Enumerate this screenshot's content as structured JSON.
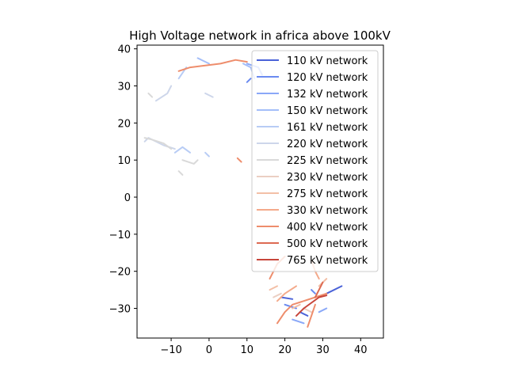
{
  "chart_data": {
    "type": "line",
    "title": "High Voltage network in africa above 100kV",
    "xlabel": "",
    "ylabel": "",
    "xlim": [
      -19,
      46
    ],
    "ylim": [
      -38,
      41
    ],
    "xticks": [
      -10,
      0,
      10,
      20,
      30,
      40
    ],
    "yticks": [
      -30,
      -20,
      -10,
      0,
      10,
      20,
      30,
      40
    ],
    "xtick_labels": [
      "−10",
      "0",
      "10",
      "20",
      "30",
      "40"
    ],
    "ytick_labels": [
      "−30",
      "−20",
      "−10",
      "0",
      "10",
      "20",
      "30",
      "40"
    ],
    "grid": false,
    "legend_position": "top-right",
    "series": [
      {
        "name": "110 kV network",
        "color": "#4a62d8",
        "segments": [
          [
            [
              19,
              -27
            ],
            [
              22,
              -27.5
            ]
          ],
          [
            [
              31,
              -26
            ],
            [
              35,
              -24
            ]
          ],
          [
            [
              24,
              -31
            ],
            [
              26,
              -32
            ]
          ]
        ]
      },
      {
        "name": "120 kV network",
        "color": "#6a8af0",
        "segments": [
          [
            [
              10,
              31
            ],
            [
              11,
              32
            ]
          ],
          [
            [
              20,
              -29
            ],
            [
              23,
              -30
            ]
          ],
          [
            [
              27,
              -25
            ],
            [
              28,
              -26
            ]
          ]
        ]
      },
      {
        "name": "132 kV network",
        "color": "#8aa8f8",
        "segments": [
          [
            [
              10,
              36
            ],
            [
              13,
              35
            ],
            [
              14,
              33
            ]
          ],
          [
            [
              22,
              -33
            ],
            [
              25,
              -34
            ]
          ],
          [
            [
              29,
              -31
            ],
            [
              31,
              -30
            ]
          ]
        ]
      },
      {
        "name": "150 kV network",
        "color": "#a4bef9",
        "segments": [
          [
            [
              9,
              36
            ],
            [
              11,
              35
            ],
            [
              12,
              32
            ]
          ],
          [
            [
              -3,
              37.5
            ],
            [
              0,
              36
            ]
          ]
        ]
      },
      {
        "name": "161 kV network",
        "color": "#b8ccf5",
        "segments": [
          [
            [
              -9,
              12
            ],
            [
              -7,
              13.5
            ],
            [
              -5,
              12
            ]
          ],
          [
            [
              -1,
              12
            ],
            [
              0,
              11
            ]
          ],
          [
            [
              -8,
              32
            ],
            [
              -6,
              35
            ]
          ]
        ]
      },
      {
        "name": "220 kV network",
        "color": "#cdd6ea",
        "segments": [
          [
            [
              -17,
              15
            ],
            [
              -16,
              16
            ],
            [
              -12,
              14
            ],
            [
              -9,
              13
            ]
          ],
          [
            [
              -1,
              28
            ],
            [
              1,
              27
            ]
          ],
          [
            [
              -14,
              26
            ],
            [
              -11,
              28
            ],
            [
              -10,
              30
            ]
          ]
        ]
      },
      {
        "name": "225 kV network",
        "color": "#d9d9d9",
        "segments": [
          [
            [
              -17,
              16
            ],
            [
              -15,
              15.5
            ],
            [
              -12,
              14.5
            ],
            [
              -10,
              13
            ]
          ],
          [
            [
              -7,
              10
            ],
            [
              -4,
              9
            ],
            [
              -3,
              10
            ]
          ],
          [
            [
              -8,
              7
            ],
            [
              -7,
              6
            ]
          ],
          [
            [
              -16,
              28
            ],
            [
              -15,
              27
            ]
          ]
        ]
      },
      {
        "name": "230 kV network",
        "color": "#ebcfc3",
        "segments": [
          [
            [
              17,
              -27
            ],
            [
              19,
              -26
            ]
          ],
          [
            [
              25,
              -30
            ],
            [
              27,
              -31
            ]
          ]
        ]
      },
      {
        "name": "275 kV network",
        "color": "#f3bfa6",
        "segments": [
          [
            [
              22,
              -30
            ],
            [
              24,
              -29
            ]
          ],
          [
            [
              29,
              -24
            ],
            [
              31,
              -22
            ]
          ],
          [
            [
              16,
              -25
            ],
            [
              18,
              -24
            ]
          ]
        ]
      },
      {
        "name": "330 kV network",
        "color": "#f4a98a",
        "segments": [
          [
            [
              18,
              -28
            ],
            [
              20,
              -26
            ],
            [
              23,
              -24
            ]
          ],
          [
            [
              27,
              -17
            ],
            [
              28,
              -20
            ],
            [
              29,
              -22
            ]
          ]
        ]
      },
      {
        "name": "400 kV network",
        "color": "#ee8d6c",
        "segments": [
          [
            [
              -8,
              34
            ],
            [
              -5,
              35
            ],
            [
              -1,
              35.5
            ],
            [
              3,
              36
            ],
            [
              7,
              37
            ],
            [
              10,
              36.5
            ]
          ],
          [
            [
              7.5,
              10.5
            ],
            [
              8.5,
              9.5
            ]
          ],
          [
            [
              18,
              -34
            ],
            [
              20,
              -31
            ],
            [
              22,
              -29
            ],
            [
              25,
              -28
            ],
            [
              28,
              -27
            ],
            [
              31,
              -26
            ]
          ],
          [
            [
              26,
              -35
            ],
            [
              27,
              -32
            ],
            [
              28,
              -29
            ]
          ],
          [
            [
              16,
              -22
            ],
            [
              18,
              -18
            ],
            [
              20,
              -16
            ]
          ]
        ]
      },
      {
        "name": "500 kV network",
        "color": "#dd6a52",
        "segments": [
          [
            [
              28,
              -27
            ],
            [
              29,
              -25
            ],
            [
              30,
              -23
            ]
          ]
        ]
      },
      {
        "name": "765 kV network",
        "color": "#c7453a",
        "segments": [
          [
            [
              23,
              -32
            ],
            [
              25,
              -30
            ],
            [
              27,
              -28.5
            ],
            [
              29,
              -27
            ],
            [
              31,
              -26.5
            ]
          ]
        ]
      }
    ]
  }
}
